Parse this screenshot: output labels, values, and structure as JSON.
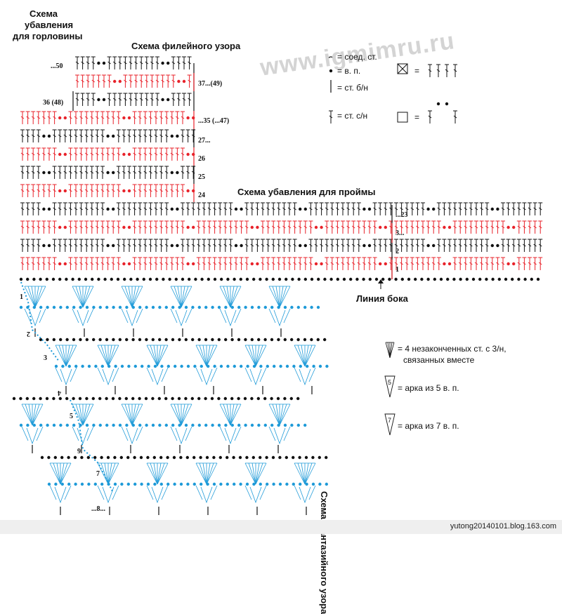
{
  "titles": {
    "neckline": [
      "Схема",
      "убавления",
      "для горловины"
    ],
    "filet": "Схема филейного узора",
    "armhole": "Схема убавления для проймы",
    "side_line": "Линия бока",
    "fancy": "Схема фантазийного узора"
  },
  "watermark": "www.igmimru.ru",
  "legend_top": {
    "slip_stitch": "= соед. ст.",
    "chain": "= в. п.",
    "sc": "= ст. б/н",
    "dc": "= ст. с/н",
    "equals": "="
  },
  "legend_bottom": {
    "cluster": [
      "= 4 незаконченных ст. с 3/н,",
      "связанных вместе"
    ],
    "arch5": "= арка из 5 в. п.",
    "arch7": "= арка из 7 в. п.",
    "arch5_num": "5",
    "arch7_num": "7"
  },
  "filet_labels": {
    "r50": "...50",
    "r37": "37...(49)",
    "r36": "36 (48)",
    "r35": "...35 (...47)",
    "r27": "27...",
    "r26": "26",
    "r25": "25",
    "r24": "24"
  },
  "armhole_labels": {
    "r23": "...23",
    "r3": "3...",
    "r2": "2",
    "r1": "1"
  },
  "fancy_labels": [
    "1",
    "2",
    "3",
    "4",
    "5",
    "6",
    "7",
    "...8..."
  ],
  "footer": "yutong20140101.blog.163.com",
  "colors": {
    "black": "#111111",
    "red": "#e8222a",
    "blue": "#1e9ad8"
  },
  "icons": [
    "slip-stitch-icon",
    "chain-icon",
    "single-crochet-icon",
    "double-crochet-icon",
    "filled-square-icon",
    "empty-square-icon",
    "cluster-icon",
    "arch-icon"
  ]
}
